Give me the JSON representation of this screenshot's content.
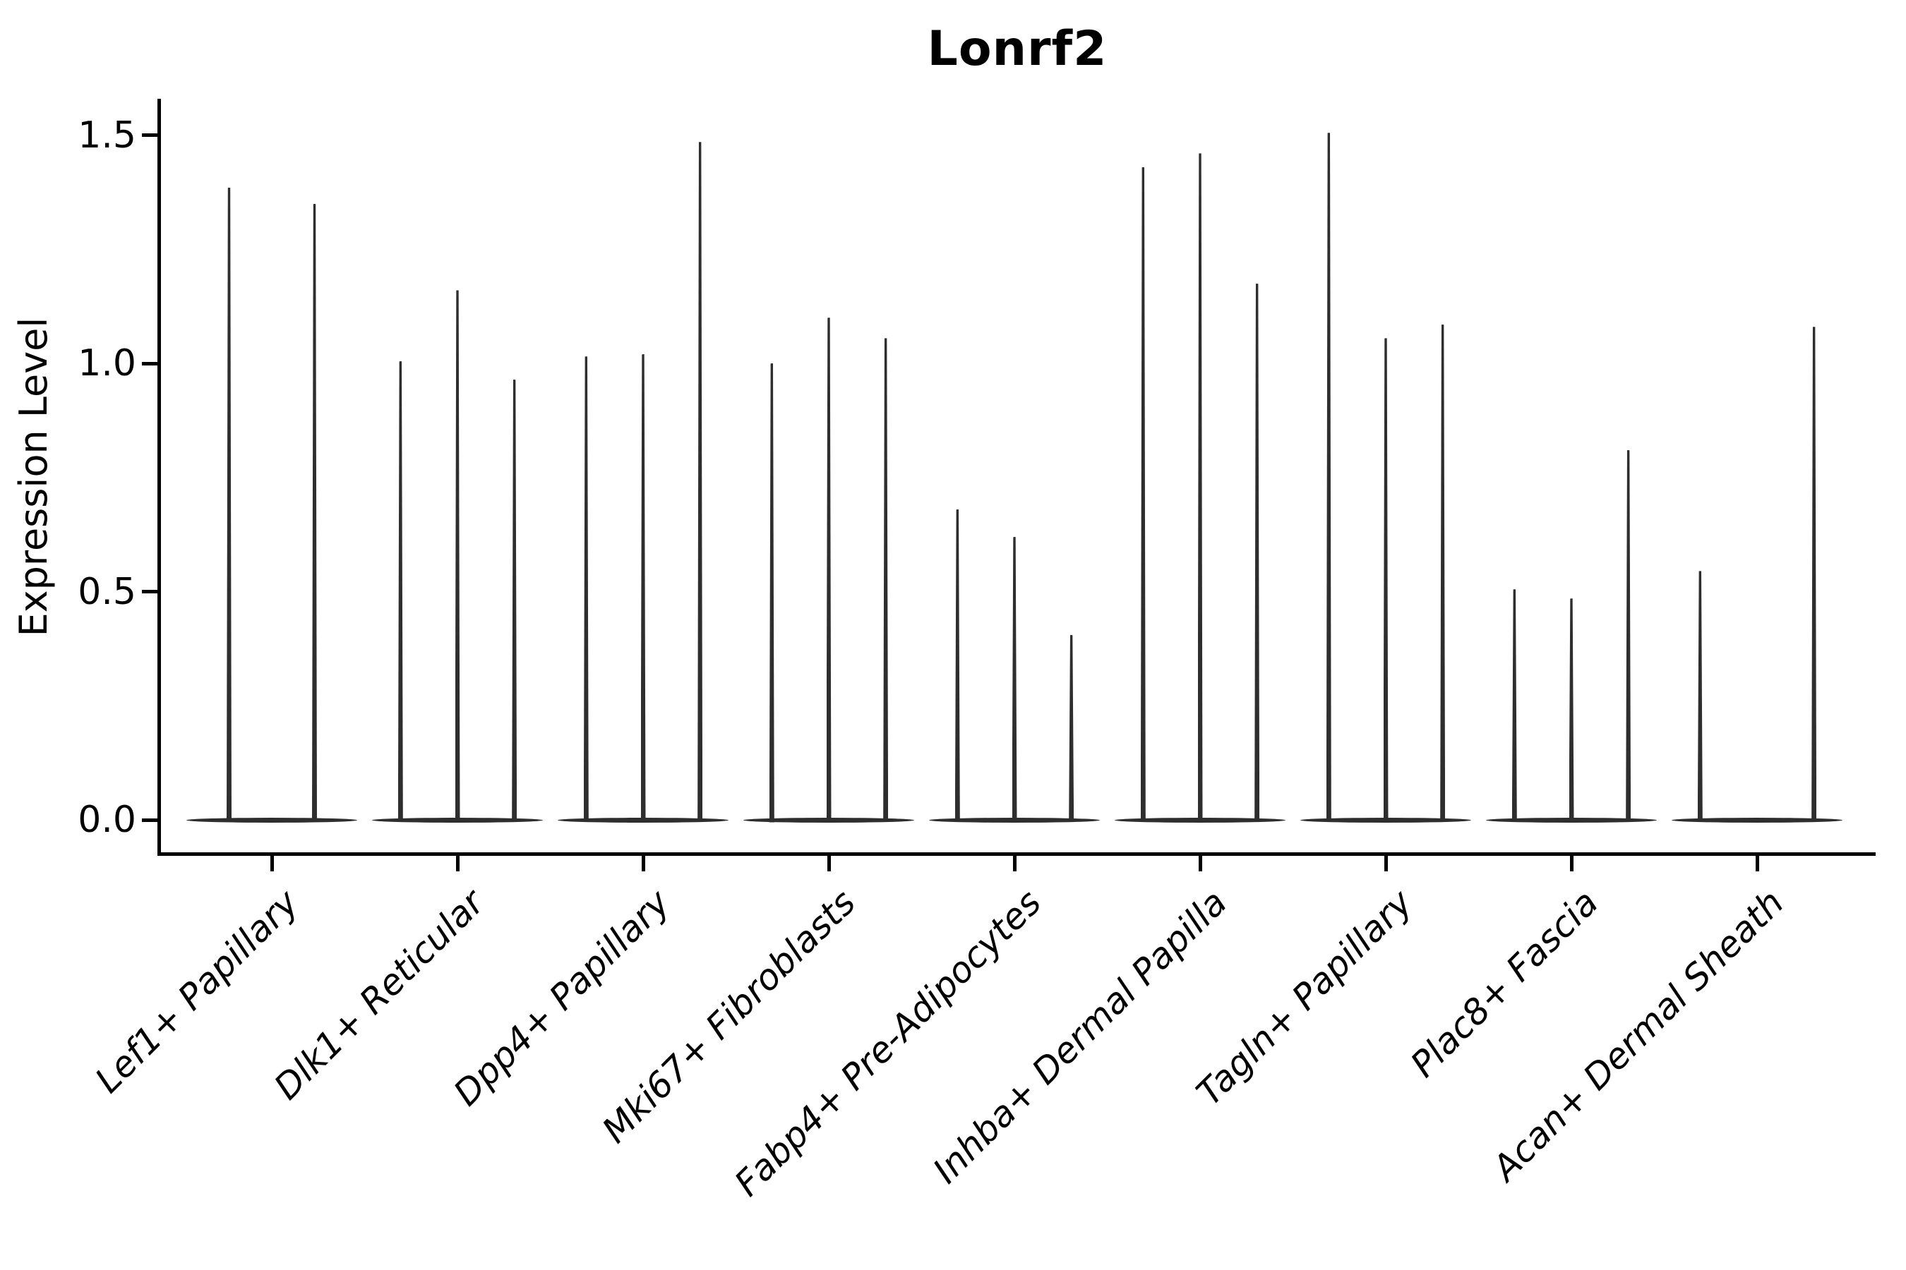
{
  "title": "Lonrf2",
  "axes": {
    "ylabel": "Expression Level",
    "y_tick_labels": [
      "0.0",
      "0.5",
      "1.0",
      "1.5"
    ]
  },
  "style": {
    "violin_color": "#2e2e2e",
    "axis_color": "#000000",
    "background": "#ffffff",
    "text_color": "#000000"
  },
  "chart_data": {
    "type": "violin",
    "title": "Lonrf2",
    "xlabel": "",
    "ylabel": "Expression Level",
    "ylim": [
      -0.07,
      1.58
    ],
    "y_ticks": [
      0.0,
      0.5,
      1.0,
      1.5
    ],
    "grid": false,
    "legend": "none",
    "categories": [
      "Lef1+ Papillary",
      "Dlk1+ Reticular",
      "Dpp4+ Papillary",
      "Mki67+ Fibroblasts",
      "Fabp4+ Pre-Adipocytes",
      "Inhba+ Dermal Papilla",
      "Tagln+ Papillary",
      "Plac8+ Fascia",
      "Acan+ Dermal Sheath"
    ],
    "groups": [
      {
        "category": "Lef1+ Papillary",
        "sub_violins": 2,
        "peak_expression": [
          1.385,
          1.35
        ]
      },
      {
        "category": "Dlk1+ Reticular",
        "sub_violins": 3,
        "peak_expression": [
          1.005,
          1.16,
          0.965
        ]
      },
      {
        "category": "Dpp4+ Papillary",
        "sub_violins": 3,
        "peak_expression": [
          1.015,
          1.02,
          1.485
        ]
      },
      {
        "category": "Mki67+ Fibroblasts",
        "sub_violins": 3,
        "peak_expression": [
          1.0,
          1.1,
          1.055
        ]
      },
      {
        "category": "Fabp4+ Pre-Adipocytes",
        "sub_violins": 3,
        "peak_expression": [
          0.68,
          0.62,
          0.405
        ]
      },
      {
        "category": "Inhba+ Dermal Papilla",
        "sub_violins": 3,
        "peak_expression": [
          1.43,
          1.46,
          1.175
        ]
      },
      {
        "category": "Tagln+ Papillary",
        "sub_violins": 3,
        "peak_expression": [
          1.505,
          1.055,
          1.085
        ]
      },
      {
        "category": "Plac8+ Fascia",
        "sub_violins": 3,
        "peak_expression": [
          0.505,
          0.485,
          0.81
        ]
      },
      {
        "category": "Acan+ Dermal Sheath",
        "sub_violins": 3,
        "peak_expression": [
          0.545,
          null,
          1.08
        ]
      }
    ]
  }
}
